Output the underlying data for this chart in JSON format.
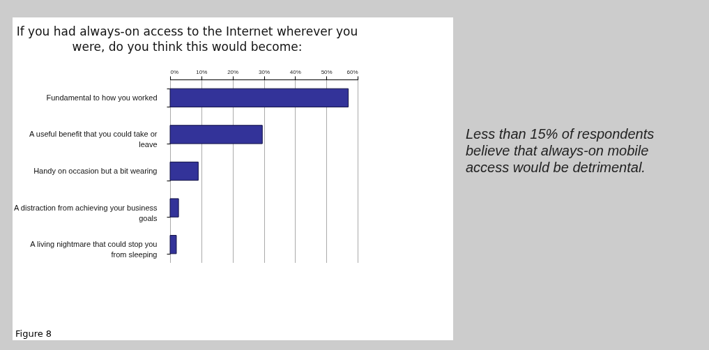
{
  "chart_data": {
    "type": "bar",
    "orientation": "horizontal",
    "title": "If you had always-on access to the Internet wherever you were, do you think this would become:",
    "categories": [
      "Fundamental to how you worked",
      "A useful benefit that you could take or leave",
      "Handy on occasion but a bit wearing",
      "A distraction from achieving your business goals",
      "A living nightmare that could stop you from sleeping"
    ],
    "values": [
      57,
      29.5,
      9,
      2.7,
      2
    ],
    "color": "#333399",
    "xlim": [
      0,
      60
    ],
    "xticks": [
      {
        "value": 0,
        "label": "0%"
      },
      {
        "value": 10,
        "label": "10%"
      },
      {
        "value": 20,
        "label": "20%"
      },
      {
        "value": 30,
        "label": "30%"
      },
      {
        "value": 40,
        "label": "40%"
      },
      {
        "value": 50,
        "label": "50%"
      },
      {
        "value": 60,
        "label": "60%"
      }
    ],
    "grid": "x",
    "annotations": [
      "Less than 15% of respondents believe that always-on mobile access would be detrimental.",
      "Figure 8"
    ]
  }
}
